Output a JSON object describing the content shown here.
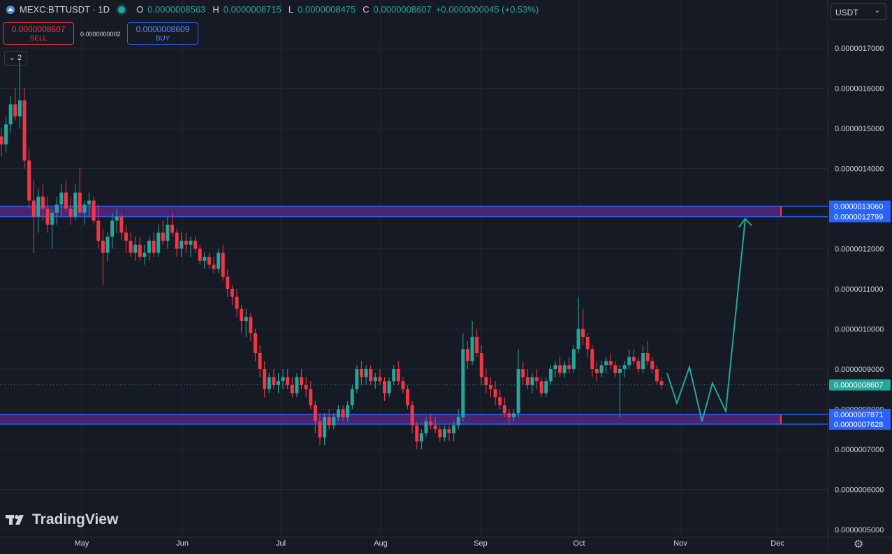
{
  "header": {
    "symbol": "MEXC:BTTUSDT · 1D",
    "o_label": "O",
    "o_value": "0.0000008563",
    "h_label": "H",
    "h_value": "0.0000008715",
    "l_label": "L",
    "l_value": "0.0000008475",
    "c_label": "C",
    "c_value": "0.0000008607",
    "change": "+0.0000000045 (+0.53%)"
  },
  "trade": {
    "sell_price": "0.0000008607",
    "sell_label": "SELL",
    "buy_price": "0.0000008609",
    "buy_label": "BUY",
    "spread": "0.0000000002"
  },
  "indicators_count": "2",
  "currency": "USDT",
  "brand": "TradingView",
  "colors": {
    "up": "#26a69a",
    "down": "#f23645",
    "zone": "#5b2a8a",
    "line": "#2962ff",
    "bg": "#161a25"
  },
  "chart_data": {
    "type": "candlestick",
    "symbol": "MEXC:BTTUSDT",
    "interval": "1D",
    "ylim": [
      5e-07,
      1.7e-06
    ],
    "y_ticks": [
      "0.0000017000",
      "0.0000016000",
      "0.0000015000",
      "0.0000014000",
      "0.0000012000",
      "0.0000011000",
      "0.0000010000",
      "0.0000009000",
      "0.0000008000",
      "0.0000007000",
      "0.0000006000",
      "0.0000005000"
    ],
    "x_ticks": [
      "May",
      "Jun",
      "Jul",
      "Aug",
      "Sep",
      "Oct",
      "Nov",
      "Dec"
    ],
    "last_price": "0.0000008607",
    "zones": [
      {
        "top": "0.0000013060",
        "bottom": "0.0000012799"
      },
      {
        "top": "0.0000007871",
        "bottom": "0.0000007628"
      }
    ],
    "candles": [
      [
        1.48,
        1.5,
        1.43,
        1.46
      ],
      [
        1.46,
        1.53,
        1.44,
        1.51
      ],
      [
        1.51,
        1.58,
        1.49,
        1.56
      ],
      [
        1.56,
        1.6,
        1.52,
        1.53
      ],
      [
        1.53,
        1.67,
        1.5,
        1.57
      ],
      [
        1.57,
        1.6,
        1.4,
        1.42
      ],
      [
        1.42,
        1.45,
        1.3,
        1.32
      ],
      [
        1.32,
        1.37,
        1.19,
        1.28
      ],
      [
        1.28,
        1.35,
        1.24,
        1.33
      ],
      [
        1.33,
        1.36,
        1.27,
        1.3
      ],
      [
        1.3,
        1.33,
        1.24,
        1.26
      ],
      [
        1.26,
        1.3,
        1.2,
        1.29
      ],
      [
        1.29,
        1.33,
        1.26,
        1.31
      ],
      [
        1.31,
        1.36,
        1.28,
        1.34
      ],
      [
        1.34,
        1.37,
        1.29,
        1.3
      ],
      [
        1.3,
        1.33,
        1.26,
        1.28
      ],
      [
        1.28,
        1.36,
        1.27,
        1.34
      ],
      [
        1.34,
        1.4,
        1.28,
        1.29
      ],
      [
        1.29,
        1.32,
        1.26,
        1.31
      ],
      [
        1.31,
        1.34,
        1.28,
        1.32
      ],
      [
        1.32,
        1.33,
        1.26,
        1.27
      ],
      [
        1.27,
        1.31,
        1.2,
        1.22
      ],
      [
        1.22,
        1.25,
        1.11,
        1.19
      ],
      [
        1.19,
        1.24,
        1.17,
        1.23
      ],
      [
        1.23,
        1.29,
        1.2,
        1.27
      ],
      [
        1.27,
        1.3,
        1.24,
        1.28
      ],
      [
        1.28,
        1.29,
        1.22,
        1.24
      ],
      [
        1.24,
        1.26,
        1.19,
        1.22
      ],
      [
        1.22,
        1.24,
        1.18,
        1.19
      ],
      [
        1.19,
        1.23,
        1.17,
        1.21
      ],
      [
        1.21,
        1.23,
        1.17,
        1.18
      ],
      [
        1.18,
        1.21,
        1.16,
        1.19
      ],
      [
        1.19,
        1.23,
        1.17,
        1.22
      ],
      [
        1.22,
        1.24,
        1.18,
        1.19
      ],
      [
        1.19,
        1.26,
        1.18,
        1.24
      ],
      [
        1.24,
        1.27,
        1.21,
        1.22
      ],
      [
        1.22,
        1.28,
        1.2,
        1.26
      ],
      [
        1.26,
        1.29,
        1.23,
        1.24
      ],
      [
        1.24,
        1.25,
        1.18,
        1.2
      ],
      [
        1.2,
        1.24,
        1.18,
        1.22
      ],
      [
        1.22,
        1.24,
        1.19,
        1.21
      ],
      [
        1.21,
        1.23,
        1.18,
        1.22
      ],
      [
        1.22,
        1.23,
        1.19,
        1.2
      ],
      [
        1.2,
        1.21,
        1.16,
        1.17
      ],
      [
        1.17,
        1.19,
        1.15,
        1.18
      ],
      [
        1.18,
        1.19,
        1.15,
        1.16
      ],
      [
        1.16,
        1.18,
        1.14,
        1.15
      ],
      [
        1.15,
        1.2,
        1.14,
        1.19
      ],
      [
        1.19,
        1.21,
        1.12,
        1.13
      ],
      [
        1.13,
        1.15,
        1.08,
        1.1
      ],
      [
        1.1,
        1.11,
        1.06,
        1.08
      ],
      [
        1.08,
        1.1,
        1.03,
        1.05
      ],
      [
        1.05,
        1.06,
        0.99,
        1.02
      ],
      [
        1.02,
        1.05,
        0.98,
        1.03
      ],
      [
        1.03,
        1.04,
        0.97,
        0.99
      ],
      [
        0.99,
        1.0,
        0.92,
        0.94
      ],
      [
        0.94,
        0.96,
        0.88,
        0.9
      ],
      [
        0.9,
        0.92,
        0.83,
        0.85
      ],
      [
        0.85,
        0.89,
        0.84,
        0.88
      ],
      [
        0.88,
        0.9,
        0.85,
        0.86
      ],
      [
        0.86,
        0.89,
        0.84,
        0.87
      ],
      [
        0.87,
        0.9,
        0.85,
        0.88
      ],
      [
        0.88,
        0.9,
        0.85,
        0.86
      ],
      [
        0.86,
        0.88,
        0.83,
        0.84
      ],
      [
        0.84,
        0.89,
        0.83,
        0.88
      ],
      [
        0.88,
        0.9,
        0.85,
        0.86
      ],
      [
        0.86,
        0.88,
        0.83,
        0.85
      ],
      [
        0.85,
        0.87,
        0.8,
        0.81
      ],
      [
        0.81,
        0.82,
        0.74,
        0.77
      ],
      [
        0.77,
        0.79,
        0.71,
        0.73
      ],
      [
        0.73,
        0.79,
        0.71,
        0.78
      ],
      [
        0.78,
        0.8,
        0.75,
        0.76
      ],
      [
        0.76,
        0.79,
        0.75,
        0.78
      ],
      [
        0.78,
        0.81,
        0.77,
        0.8
      ],
      [
        0.8,
        0.81,
        0.77,
        0.78
      ],
      [
        0.78,
        0.82,
        0.77,
        0.81
      ],
      [
        0.81,
        0.86,
        0.8,
        0.85
      ],
      [
        0.85,
        0.91,
        0.84,
        0.9
      ],
      [
        0.9,
        0.92,
        0.86,
        0.88
      ],
      [
        0.88,
        0.91,
        0.86,
        0.9
      ],
      [
        0.9,
        0.91,
        0.86,
        0.87
      ],
      [
        0.87,
        0.89,
        0.85,
        0.88
      ],
      [
        0.88,
        0.9,
        0.86,
        0.87
      ],
      [
        0.87,
        0.88,
        0.82,
        0.84
      ],
      [
        0.84,
        0.88,
        0.83,
        0.87
      ],
      [
        0.87,
        0.91,
        0.86,
        0.9
      ],
      [
        0.9,
        0.92,
        0.86,
        0.87
      ],
      [
        0.87,
        0.88,
        0.84,
        0.85
      ],
      [
        0.85,
        0.86,
        0.8,
        0.81
      ],
      [
        0.81,
        0.82,
        0.74,
        0.76
      ],
      [
        0.76,
        0.77,
        0.7,
        0.72
      ],
      [
        0.72,
        0.75,
        0.7,
        0.74
      ],
      [
        0.74,
        0.78,
        0.73,
        0.77
      ],
      [
        0.77,
        0.79,
        0.75,
        0.76
      ],
      [
        0.76,
        0.78,
        0.74,
        0.75
      ],
      [
        0.75,
        0.76,
        0.72,
        0.73
      ],
      [
        0.73,
        0.76,
        0.72,
        0.75
      ],
      [
        0.75,
        0.76,
        0.72,
        0.74
      ],
      [
        0.74,
        0.77,
        0.72,
        0.76
      ],
      [
        0.76,
        0.8,
        0.75,
        0.78
      ],
      [
        0.78,
        0.99,
        0.77,
        0.95
      ],
      [
        0.95,
        0.97,
        0.9,
        0.92
      ],
      [
        0.92,
        1.02,
        0.91,
        0.98
      ],
      [
        0.98,
        1.0,
        0.93,
        0.94
      ],
      [
        0.94,
        0.96,
        0.86,
        0.88
      ],
      [
        0.88,
        0.9,
        0.84,
        0.86
      ],
      [
        0.86,
        0.88,
        0.83,
        0.85
      ],
      [
        0.85,
        0.87,
        0.81,
        0.83
      ],
      [
        0.83,
        0.85,
        0.8,
        0.81
      ],
      [
        0.81,
        0.83,
        0.78,
        0.79
      ],
      [
        0.79,
        0.8,
        0.76,
        0.78
      ],
      [
        0.78,
        0.8,
        0.77,
        0.79
      ],
      [
        0.79,
        0.95,
        0.78,
        0.9
      ],
      [
        0.9,
        0.92,
        0.86,
        0.88
      ],
      [
        0.88,
        0.9,
        0.85,
        0.86
      ],
      [
        0.86,
        0.89,
        0.84,
        0.88
      ],
      [
        0.88,
        0.9,
        0.85,
        0.87
      ],
      [
        0.87,
        0.88,
        0.83,
        0.84
      ],
      [
        0.84,
        0.88,
        0.83,
        0.87
      ],
      [
        0.87,
        0.91,
        0.86,
        0.9
      ],
      [
        0.9,
        0.92,
        0.88,
        0.91
      ],
      [
        0.91,
        0.93,
        0.88,
        0.89
      ],
      [
        0.89,
        0.92,
        0.88,
        0.91
      ],
      [
        0.91,
        0.93,
        0.89,
        0.9
      ],
      [
        0.9,
        0.96,
        0.89,
        0.95
      ],
      [
        0.95,
        1.08,
        0.94,
        1.0
      ],
      [
        1.0,
        1.05,
        0.96,
        0.98
      ],
      [
        0.98,
        0.99,
        0.93,
        0.95
      ],
      [
        0.95,
        0.96,
        0.88,
        0.9
      ],
      [
        0.9,
        0.92,
        0.87,
        0.89
      ],
      [
        0.89,
        0.92,
        0.88,
        0.91
      ],
      [
        0.91,
        0.93,
        0.89,
        0.92
      ],
      [
        0.92,
        0.94,
        0.9,
        0.91
      ],
      [
        0.91,
        0.92,
        0.88,
        0.89
      ],
      [
        0.89,
        0.91,
        0.78,
        0.9
      ],
      [
        0.9,
        0.92,
        0.88,
        0.91
      ],
      [
        0.91,
        0.95,
        0.9,
        0.93
      ],
      [
        0.93,
        0.95,
        0.91,
        0.92
      ],
      [
        0.92,
        0.93,
        0.89,
        0.9
      ],
      [
        0.9,
        0.96,
        0.89,
        0.94
      ],
      [
        0.94,
        0.97,
        0.91,
        0.92
      ],
      [
        0.92,
        0.93,
        0.89,
        0.9
      ],
      [
        0.9,
        0.91,
        0.86,
        0.87
      ],
      [
        0.87,
        0.88,
        0.85,
        0.86
      ]
    ],
    "projection_path": [
      [
        0.89
      ],
      [
        0.815
      ],
      [
        0.905
      ],
      [
        0.77
      ],
      [
        0.865
      ],
      [
        0.795
      ],
      [
        1.275
      ]
    ]
  }
}
